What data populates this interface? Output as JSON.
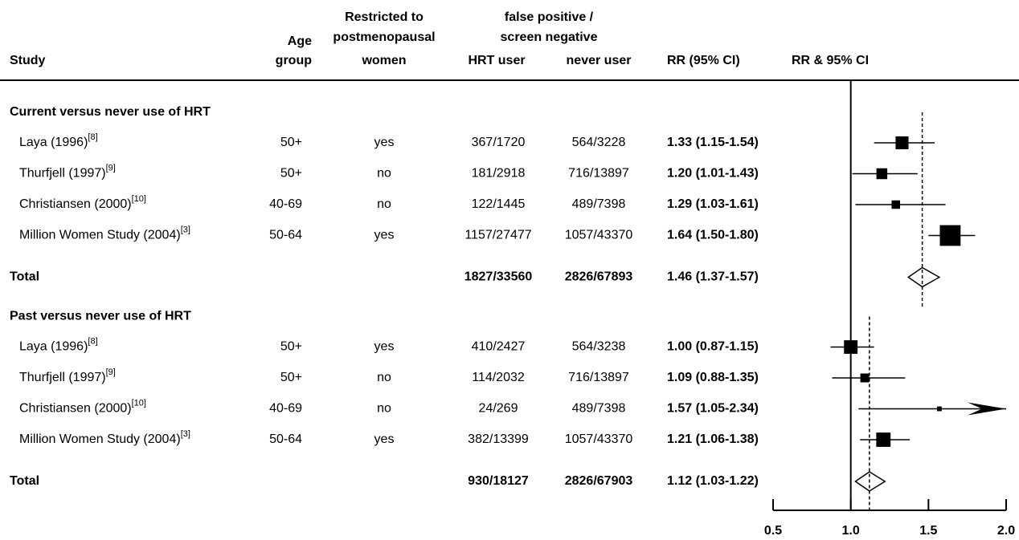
{
  "chart_data": {
    "type": "forest",
    "headers": {
      "study": "Study",
      "age": [
        "Age",
        "group"
      ],
      "restricted": [
        "Restricted to",
        "postmenopausal",
        "women"
      ],
      "fp_group": [
        "false positive /",
        "screen negative"
      ],
      "hrt": "HRT user",
      "never": "never user",
      "rr_ci": "RR (95% CI)",
      "plot": "RR & 95% CI"
    },
    "groups": [
      {
        "title": "Current versus never use of HRT",
        "rows": [
          {
            "study": "Laya (1996)",
            "ref": "[8]",
            "age": "50+",
            "restricted": "yes",
            "hrt": "367/1720",
            "never": "564/3228",
            "rr_ci": "1.33 (1.15-1.54)",
            "rr": 1.33,
            "lo": 1.15,
            "hi": 1.54
          },
          {
            "study": "Thurfjell (1997)",
            "ref": "[9]",
            "age": "50+",
            "restricted": "no",
            "hrt": "181/2918",
            "never": "716/13897",
            "rr_ci": "1.20 (1.01-1.43)",
            "rr": 1.2,
            "lo": 1.01,
            "hi": 1.43
          },
          {
            "study": "Christiansen (2000)",
            "ref": "[10]",
            "age": "40-69",
            "restricted": "no",
            "hrt": "122/1445",
            "never": "489/7398",
            "rr_ci": "1.29 (1.03-1.61)",
            "rr": 1.29,
            "lo": 1.03,
            "hi": 1.61
          },
          {
            "study": "Million Women Study (2004)",
            "ref": "[3]",
            "age": "50-64",
            "restricted": "yes",
            "hrt": "1157/27477",
            "never": "1057/43370",
            "rr_ci": "1.64 (1.50-1.80)",
            "rr": 1.64,
            "lo": 1.5,
            "hi": 1.8
          }
        ],
        "total": {
          "label": "Total",
          "hrt": "1827/33560",
          "never": "2826/67893",
          "rr_ci": "1.46 (1.37-1.57)",
          "rr": 1.46,
          "lo": 1.37,
          "hi": 1.57
        }
      },
      {
        "title": "Past versus never use of HRT",
        "rows": [
          {
            "study": "Laya (1996)",
            "ref": "[8]",
            "age": "50+",
            "restricted": "yes",
            "hrt": "410/2427",
            "never": "564/3238",
            "rr_ci": "1.00 (0.87-1.15)",
            "rr": 1.0,
            "lo": 0.87,
            "hi": 1.15
          },
          {
            "study": "Thurfjell (1997)",
            "ref": "[9]",
            "age": "50+",
            "restricted": "no",
            "hrt": "114/2032",
            "never": "716/13897",
            "rr_ci": "1.09 (0.88-1.35)",
            "rr": 1.09,
            "lo": 0.88,
            "hi": 1.35
          },
          {
            "study": "Christiansen (2000)",
            "ref": "[10]",
            "age": "40-69",
            "restricted": "no",
            "hrt": "24/269",
            "never": "489/7398",
            "rr_ci": "1.57 (1.05-2.34)",
            "rr": 1.57,
            "lo": 1.05,
            "hi": 2.34
          },
          {
            "study": "Million Women Study (2004)",
            "ref": "[3]",
            "age": "50-64",
            "restricted": "yes",
            "hrt": "382/13399",
            "never": "1057/43370",
            "rr_ci": "1.21 (1.06-1.38)",
            "rr": 1.21,
            "lo": 1.06,
            "hi": 1.38
          }
        ],
        "total": {
          "label": "Total",
          "hrt": "930/18127",
          "never": "2826/67903",
          "rr_ci": "1.12 (1.03-1.22)",
          "rr": 1.12,
          "lo": 1.03,
          "hi": 1.22
        }
      }
    ],
    "xlim": [
      0.5,
      2.0
    ],
    "xticks": [
      {
        "value": 0.5,
        "label": "0.5"
      },
      {
        "value": 1.0,
        "label": "1.0"
      },
      1.5,
      {
        "value": 2.0,
        "label": "2.0"
      }
    ],
    "null_line": 1
  }
}
